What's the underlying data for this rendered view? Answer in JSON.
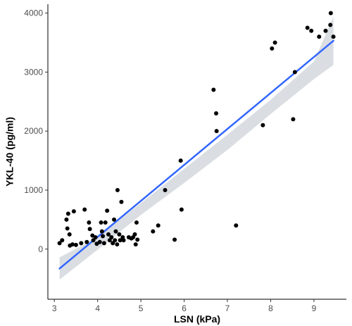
{
  "chart_data": {
    "type": "scatter",
    "title": "",
    "xlabel": "LSN (kPa)",
    "ylabel": "YKL-40 (pg/ml)",
    "xlim": [
      2.85,
      9.75
    ],
    "ylim": [
      -850,
      4150
    ],
    "x_ticks": [
      3,
      4,
      5,
      6,
      7,
      8,
      9
    ],
    "y_ticks": [
      0,
      1000,
      2000,
      3000,
      4000
    ],
    "grid": false,
    "points": [
      {
        "x": 3.12,
        "y": 100
      },
      {
        "x": 3.18,
        "y": 150
      },
      {
        "x": 3.28,
        "y": 500
      },
      {
        "x": 3.3,
        "y": 350
      },
      {
        "x": 3.32,
        "y": 600
      },
      {
        "x": 3.35,
        "y": 250
      },
      {
        "x": 3.36,
        "y": 60
      },
      {
        "x": 3.42,
        "y": 80
      },
      {
        "x": 3.45,
        "y": 640
      },
      {
        "x": 3.5,
        "y": 70
      },
      {
        "x": 3.62,
        "y": 100
      },
      {
        "x": 3.7,
        "y": 670
      },
      {
        "x": 3.75,
        "y": 120
      },
      {
        "x": 3.8,
        "y": 450
      },
      {
        "x": 3.82,
        "y": 340
      },
      {
        "x": 3.88,
        "y": 230
      },
      {
        "x": 3.9,
        "y": 150
      },
      {
        "x": 3.95,
        "y": 200
      },
      {
        "x": 3.98,
        "y": 90
      },
      {
        "x": 4.05,
        "y": 120
      },
      {
        "x": 4.08,
        "y": 450
      },
      {
        "x": 4.1,
        "y": 300
      },
      {
        "x": 4.12,
        "y": 220
      },
      {
        "x": 4.15,
        "y": 100
      },
      {
        "x": 4.18,
        "y": 450
      },
      {
        "x": 4.22,
        "y": 650
      },
      {
        "x": 4.25,
        "y": 250
      },
      {
        "x": 4.28,
        "y": 150
      },
      {
        "x": 4.32,
        "y": 200
      },
      {
        "x": 4.35,
        "y": 100
      },
      {
        "x": 4.38,
        "y": 500
      },
      {
        "x": 4.4,
        "y": 150
      },
      {
        "x": 4.42,
        "y": 300
      },
      {
        "x": 4.45,
        "y": 80
      },
      {
        "x": 4.46,
        "y": 1000
      },
      {
        "x": 4.5,
        "y": 250
      },
      {
        "x": 4.52,
        "y": 150
      },
      {
        "x": 4.55,
        "y": 800
      },
      {
        "x": 4.58,
        "y": 200
      },
      {
        "x": 4.6,
        "y": 150
      },
      {
        "x": 4.72,
        "y": 200
      },
      {
        "x": 4.78,
        "y": 180
      },
      {
        "x": 4.82,
        "y": 200
      },
      {
        "x": 4.86,
        "y": 250
      },
      {
        "x": 4.88,
        "y": 80
      },
      {
        "x": 4.9,
        "y": 450
      },
      {
        "x": 4.92,
        "y": 160
      },
      {
        "x": 5.28,
        "y": 300
      },
      {
        "x": 5.4,
        "y": 400
      },
      {
        "x": 5.56,
        "y": 1000
      },
      {
        "x": 5.78,
        "y": 160
      },
      {
        "x": 5.92,
        "y": 1500
      },
      {
        "x": 5.94,
        "y": 670
      },
      {
        "x": 6.68,
        "y": 2700
      },
      {
        "x": 6.74,
        "y": 2300
      },
      {
        "x": 6.75,
        "y": 2000
      },
      {
        "x": 7.2,
        "y": 400
      },
      {
        "x": 7.82,
        "y": 2100
      },
      {
        "x": 8.03,
        "y": 3400
      },
      {
        "x": 8.1,
        "y": 3500
      },
      {
        "x": 8.52,
        "y": 2200
      },
      {
        "x": 8.56,
        "y": 3000
      },
      {
        "x": 8.85,
        "y": 3750
      },
      {
        "x": 8.94,
        "y": 3700
      },
      {
        "x": 9.12,
        "y": 3600
      },
      {
        "x": 9.27,
        "y": 3700
      },
      {
        "x": 9.38,
        "y": 3800
      },
      {
        "x": 9.39,
        "y": 4000
      },
      {
        "x": 9.45,
        "y": 3600
      }
    ],
    "fit_line": {
      "x": [
        3.12,
        9.45
      ],
      "y": [
        -330,
        3530
      ],
      "color": "#3366ff"
    },
    "confidence_band": {
      "x": [
        3.12,
        4.0,
        5.0,
        6.0,
        7.0,
        8.0,
        9.0,
        9.45
      ],
      "lower": [
        -520,
        -10,
        580,
        1120,
        1680,
        2290,
        2880,
        3120
      ],
      "upper": [
        -140,
        200,
        780,
        1360,
        1940,
        2530,
        3180,
        3940
      ],
      "color": "#d4d8dd"
    },
    "point_color": "#000000"
  }
}
